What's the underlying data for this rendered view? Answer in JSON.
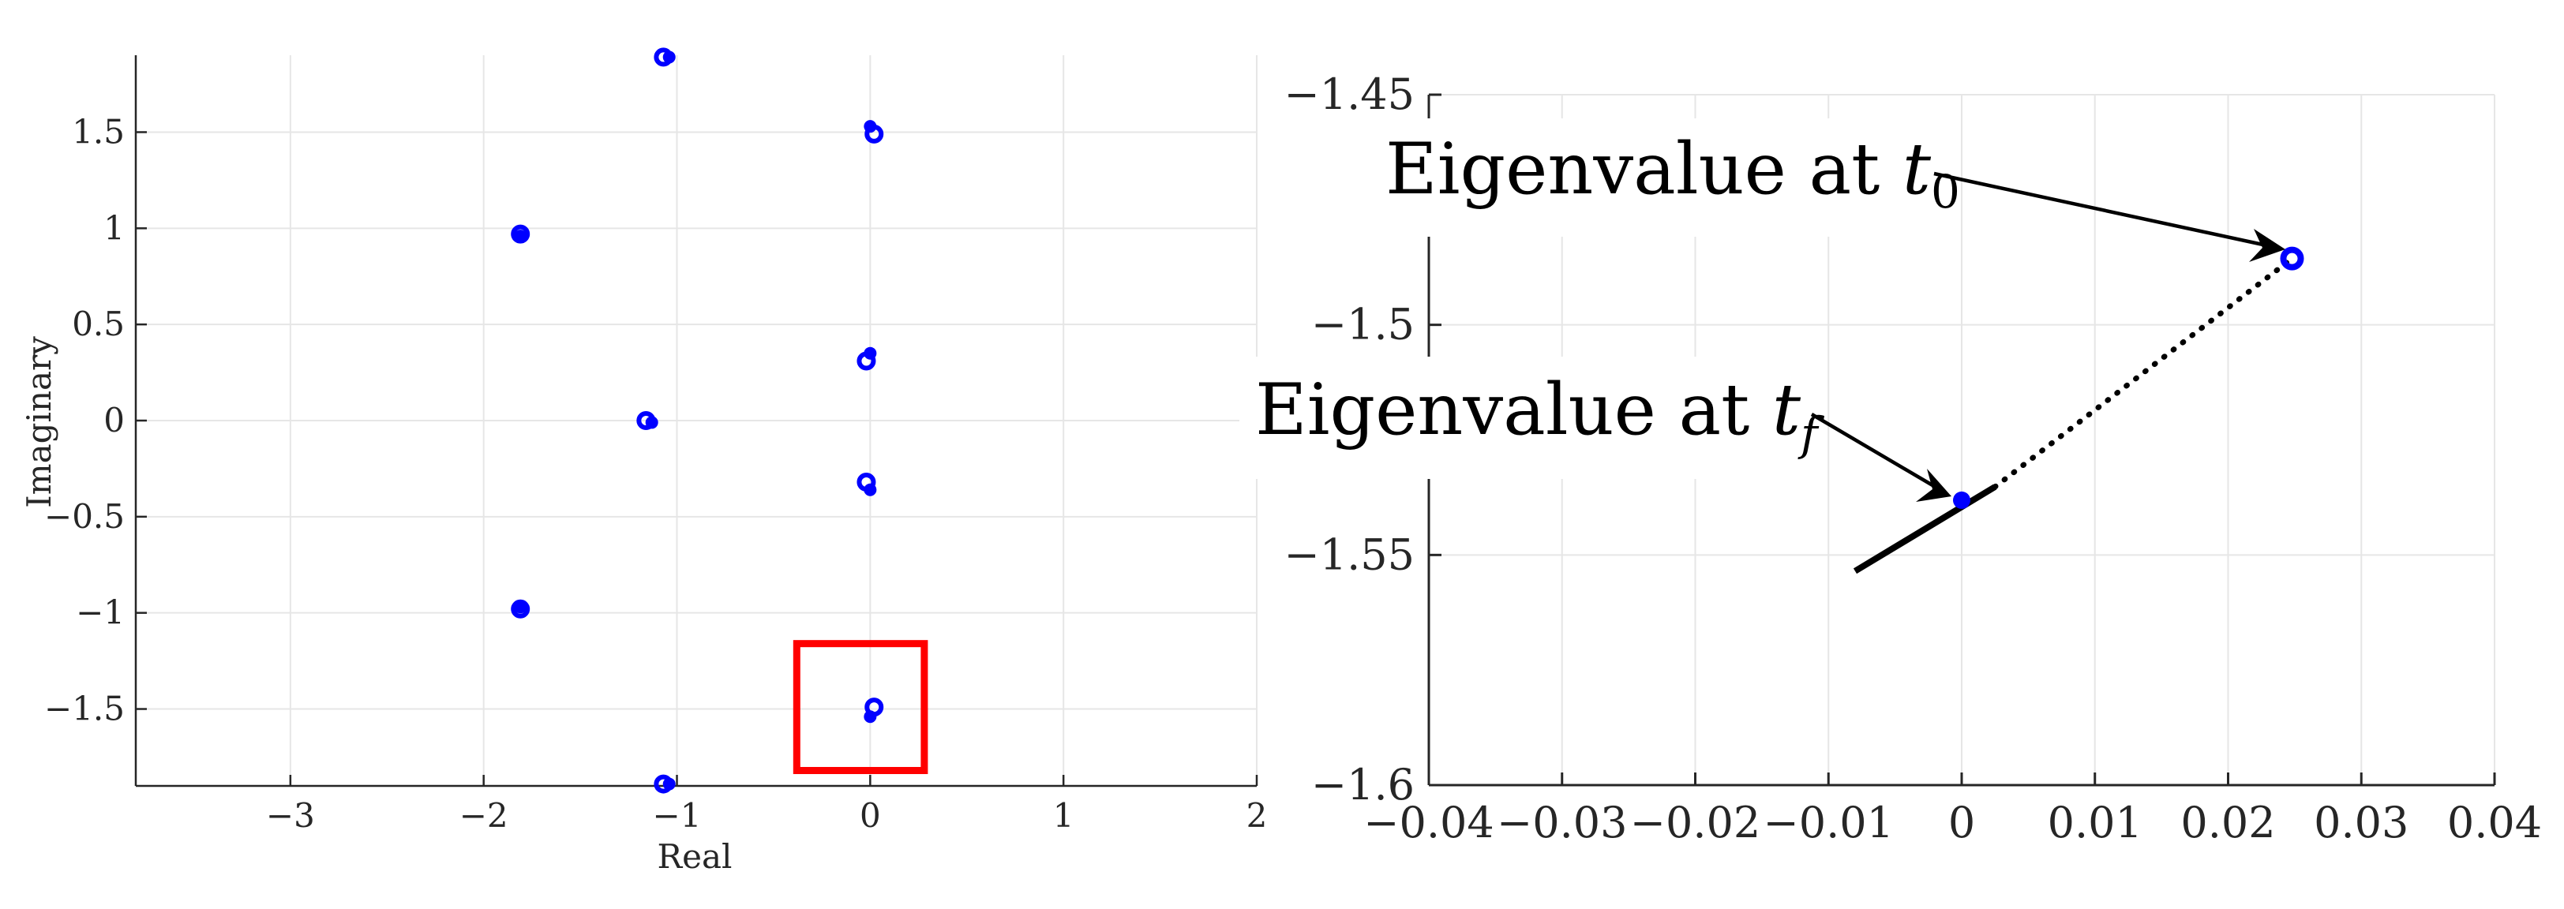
{
  "chart_data": [
    {
      "type": "scatter",
      "xlabel": "Real",
      "ylabel": "Imaginary",
      "xlim": [
        -3.8,
        2
      ],
      "ylim": [
        -1.9,
        1.9
      ],
      "xticks": [
        -3,
        -2,
        -1,
        0,
        1,
        2
      ],
      "xtick_labels": [
        "−3",
        "−2",
        "−1",
        "0",
        "1",
        "2"
      ],
      "yticks": [
        1.5,
        1,
        0.5,
        0,
        -0.5,
        -1,
        -1.5
      ],
      "ytick_labels": [
        "1.5",
        "1",
        "0.5",
        "0",
        "−0.5",
        "−1",
        "−1.5"
      ],
      "grid": true,
      "series": [
        {
          "marker": "circle-open",
          "color": "#0000ff",
          "points": [
            [
              -1.07,
              1.89
            ],
            [
              0.02,
              1.49
            ],
            [
              -1.81,
              0.97
            ],
            [
              -0.02,
              0.31
            ],
            [
              -1.16,
              0.0
            ],
            [
              -0.02,
              -0.32
            ],
            [
              -1.81,
              -0.98
            ],
            [
              0.02,
              -1.49
            ],
            [
              -1.07,
              -1.89
            ]
          ]
        },
        {
          "marker": "dot",
          "color": "#0000ff",
          "points": [
            [
              -1.04,
              1.89
            ],
            [
              0.0,
              1.53
            ],
            [
              -1.81,
              0.96
            ],
            [
              0.0,
              0.35
            ],
            [
              -1.13,
              -0.01
            ],
            [
              0.0,
              -0.36
            ],
            [
              -1.81,
              -0.97
            ],
            [
              0.0,
              -1.54
            ],
            [
              -1.04,
              -1.89
            ]
          ]
        }
      ],
      "highlight_box": {
        "x": [
          -0.38,
          0.28
        ],
        "y": [
          -1.82,
          -1.16
        ],
        "color": "#ff0000"
      }
    },
    {
      "type": "line",
      "xlim": [
        -0.04,
        0.04
      ],
      "ylim": [
        -1.6,
        -1.45
      ],
      "xticks": [
        -0.04,
        -0.03,
        -0.02,
        -0.01,
        0,
        0.01,
        0.02,
        0.03,
        0.04
      ],
      "xtick_labels": [
        "−0.04",
        "−0.03",
        "−0.02",
        "−0.01",
        "0",
        "0.01",
        "0.02",
        "0.03",
        "0.04"
      ],
      "yticks": [
        -1.45,
        -1.5,
        -1.55,
        -1.6
      ],
      "ytick_labels": [
        "−1.45",
        "−1.5",
        "−1.55",
        "−1.6"
      ],
      "grid": true,
      "series": [
        {
          "style": "solid",
          "color": "#000000",
          "points": [
            [
              -0.008,
              -1.5535
            ],
            [
              0.0025,
              -1.5352
            ]
          ]
        },
        {
          "style": "dotted",
          "color": "#000000",
          "points": [
            [
              0.0025,
              -1.5352
            ],
            [
              0.0248,
              -1.4856
            ]
          ]
        }
      ],
      "start_point": {
        "x": 0.0248,
        "y": -1.4856,
        "marker": "circle-open",
        "color": "#0000ff"
      },
      "end_point": {
        "x": 0.0,
        "y": -1.5381,
        "marker": "dot",
        "color": "#0000ff"
      },
      "annotations": [
        {
          "text": "Eigenvalue at ",
          "math_var": "t",
          "subscript": "0"
        },
        {
          "text": "Eigenvalue at ",
          "math_var": "t",
          "subscript": "f"
        }
      ]
    }
  ]
}
